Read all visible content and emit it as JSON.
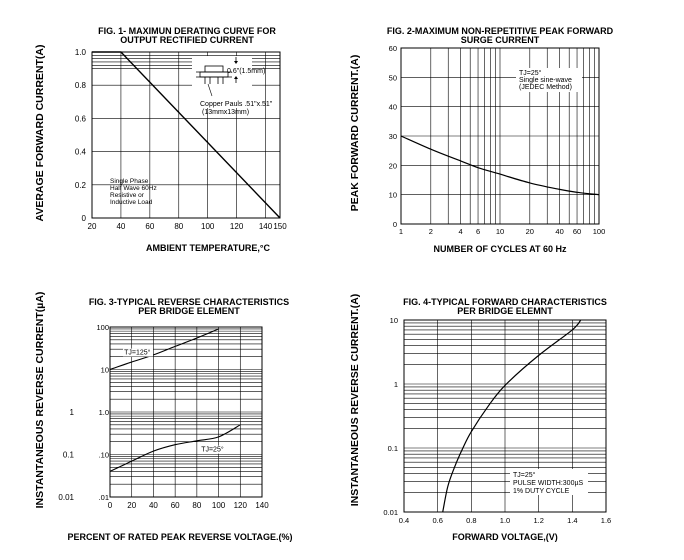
{
  "chart_data": [
    {
      "type": "line",
      "title_line1": "FIG. 1- MAXIMUN DERATING CURVE FOR",
      "title_line2": "OUTPUT RECTIFIED CURRENT",
      "xlabel": "AMBIENT TEMPERATURE,°C",
      "ylabel": "AVERAGE FORWARD CURRENT(A)",
      "xlim": [
        20,
        150
      ],
      "ylim": [
        0,
        1.0
      ],
      "x_ticks": [
        "20",
        "40",
        "60",
        "80",
        "100",
        "120",
        "140",
        "150"
      ],
      "x_tick_values": [
        20,
        40,
        60,
        80,
        100,
        120,
        140,
        150
      ],
      "y_ticks": [
        "0",
        "0.2",
        "0.4",
        "0.6",
        "0.8",
        "1.0"
      ],
      "y_tick_values": [
        0,
        0.2,
        0.4,
        0.6,
        0.8,
        1.0
      ],
      "grid": true,
      "series": [
        {
          "x": [
            20,
            40,
            150
          ],
          "y": [
            1.0,
            1.0,
            0
          ]
        }
      ],
      "annotations": {
        "note_lines": [
          "Single Phase",
          "Half Wave 60Hz",
          "Resistive or",
          "Inductive Load"
        ],
        "dim_label": "0.6\"(1.5mm)",
        "pad_line1": "Copper Pauls .51\"x.51\"",
        "pad_line2": "(13mmx13mm)"
      }
    },
    {
      "type": "line",
      "title_line1": "FIG. 2-MAXIMUM NON-REPETITIVE PEAK FORWARD",
      "title_line2": "SURGE CURRENT",
      "xlabel": "NUMBER OF CYCLES AT 60 Hz",
      "ylabel": "PEAK  FORWARD CURRENT.(A)",
      "x_scale": "log",
      "xlim": [
        1,
        100
      ],
      "ylim": [
        0,
        60
      ],
      "x_ticks": [
        "1",
        "2",
        "4",
        "6",
        "10",
        "20",
        "40",
        "60",
        "100"
      ],
      "x_tick_values": [
        1,
        2,
        4,
        6,
        10,
        20,
        40,
        60,
        100
      ],
      "y_ticks": [
        "0",
        "10",
        "20",
        "30",
        "40",
        "50",
        "60"
      ],
      "y_tick_values": [
        0,
        10,
        20,
        30,
        40,
        50,
        60
      ],
      "grid": true,
      "series": [
        {
          "x": [
            1,
            2,
            4,
            6,
            10,
            20,
            40,
            60,
            100
          ],
          "y": [
            30,
            25.5,
            21.5,
            19.2,
            17,
            14,
            11.8,
            10.8,
            10
          ]
        }
      ],
      "annotations": {
        "note_lines": [
          "TJ=25°",
          "Single sine-wave",
          "(JEDEC Method)"
        ]
      }
    },
    {
      "type": "line",
      "title_line1": "FIG. 3-TYPICAL REVERSE CHARACTERISTICS",
      "title_line2": "PER BRIDGE ELEMENT",
      "xlabel": "PERCENT OF RATED PEAK REVERSE VOLTAGE.(%)",
      "ylabel": "INSTANTANEOUS REVERSE CURRENT(µA)",
      "y_scale": "log",
      "xlim": [
        0,
        140
      ],
      "ylim": [
        0.01,
        100
      ],
      "x_ticks": [
        "0",
        "20",
        "40",
        "60",
        "80",
        "100",
        "120",
        "140"
      ],
      "x_tick_values": [
        0,
        20,
        40,
        60,
        80,
        100,
        120,
        140
      ],
      "y_ticks": [
        "100",
        "10",
        "1.0",
        ".10",
        ".01"
      ],
      "y_tick_values": [
        100,
        10,
        1.0,
        0.1,
        0.01
      ],
      "y_outer_ticks": [
        "1",
        "0.1",
        "0.01"
      ],
      "y_outer_tick_values": [
        1,
        0.1,
        0.01
      ],
      "grid": true,
      "series": [
        {
          "name": "TJ=125°",
          "x": [
            0,
            20,
            40,
            60,
            80,
            100
          ],
          "y": [
            10,
            15,
            22,
            35,
            55,
            90
          ]
        },
        {
          "name": "TJ=25°",
          "x": [
            0,
            20,
            40,
            60,
            80,
            100,
            120
          ],
          "y": [
            0.04,
            0.07,
            0.12,
            0.17,
            0.21,
            0.26,
            0.5
          ]
        }
      ]
    },
    {
      "type": "line",
      "title_line1": "FIG. 4-TYPICAL FORWARD CHARACTERISTICS",
      "title_line2": "PER BRIDGE ELEMNT",
      "xlabel": "FORWARD VOLTAGE,(V)",
      "ylabel": "INSTANTANEOUS REVERSE CURRENT.(A)",
      "y_scale": "log",
      "xlim": [
        0.4,
        1.6
      ],
      "ylim": [
        0.01,
        10
      ],
      "x_ticks": [
        "0.4",
        "0.6",
        "0.8",
        "1.0",
        "1.2",
        "1.4",
        "1.6"
      ],
      "x_tick_values": [
        0.4,
        0.6,
        0.8,
        1.0,
        1.2,
        1.4,
        1.6
      ],
      "y_ticks": [
        "10",
        "1",
        "0.1",
        "0.01"
      ],
      "y_tick_values": [
        10,
        1,
        0.1,
        0.01
      ],
      "grid": true,
      "series": [
        {
          "x": [
            0.63,
            0.66,
            0.7,
            0.75,
            0.8,
            0.9,
            1.0,
            1.2,
            1.4,
            1.45
          ],
          "y": [
            0.01,
            0.025,
            0.05,
            0.1,
            0.18,
            0.45,
            0.95,
            2.8,
            7,
            10
          ]
        }
      ],
      "annotations": {
        "note_lines": [
          "TJ=25°",
          "PULSE WIDTH:300µS",
          "1% DUTY CYCLE"
        ]
      }
    }
  ]
}
